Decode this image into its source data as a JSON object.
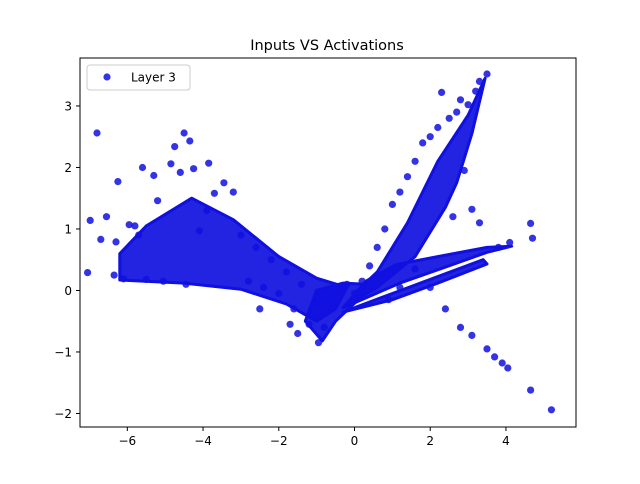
{
  "chart_data": {
    "type": "scatter",
    "title": "Inputs VS Activations",
    "xlabel": "",
    "ylabel": "",
    "xlim": [
      -7.25,
      5.85
    ],
    "ylim": [
      -2.22,
      3.78
    ],
    "xticks": [
      -6,
      -4,
      -2,
      0,
      2,
      4
    ],
    "yticks": [
      -2,
      -1,
      0,
      1,
      2,
      3
    ],
    "xtick_labels": [
      "−6",
      "−4",
      "−2",
      "0",
      "2",
      "4"
    ],
    "ytick_labels": [
      "−2",
      "−1",
      "0",
      "1",
      "2",
      "3"
    ],
    "legend_position": "top-left",
    "grid": false,
    "series": [
      {
        "name": "Layer 3",
        "color": "#1010e0",
        "points": [
          [
            -7.05,
            0.29
          ],
          [
            -6.98,
            1.14
          ],
          [
            -6.8,
            2.56
          ],
          [
            -6.7,
            0.83
          ],
          [
            -6.55,
            1.2
          ],
          [
            -6.35,
            0.25
          ],
          [
            -6.3,
            0.79
          ],
          [
            -6.25,
            1.77
          ],
          [
            -6.1,
            0.19
          ],
          [
            -5.95,
            1.07
          ],
          [
            -5.8,
            1.05
          ],
          [
            -5.6,
            2.0
          ],
          [
            -5.5,
            0.18
          ],
          [
            -5.3,
            1.87
          ],
          [
            -5.2,
            1.46
          ],
          [
            -5.05,
            0.15
          ],
          [
            -4.85,
            2.06
          ],
          [
            -4.75,
            2.34
          ],
          [
            -4.6,
            1.92
          ],
          [
            -4.5,
            2.56
          ],
          [
            -4.45,
            0.1
          ],
          [
            -4.35,
            2.43
          ],
          [
            -4.25,
            1.98
          ],
          [
            -4.1,
            0.97
          ],
          [
            -3.85,
            2.07
          ],
          [
            -3.7,
            1.58
          ],
          [
            -3.45,
            1.75
          ],
          [
            -3.2,
            1.6
          ],
          [
            -3.0,
            0.9
          ],
          [
            -2.8,
            0.15
          ],
          [
            -2.6,
            0.7
          ],
          [
            -2.4,
            0.05
          ],
          [
            -2.2,
            0.5
          ],
          [
            -2.0,
            -0.05
          ],
          [
            -1.8,
            0.3
          ],
          [
            -1.6,
            -0.3
          ],
          [
            -1.4,
            0.1
          ],
          [
            -1.2,
            -0.55
          ],
          [
            -1.0,
            -0.2
          ],
          [
            -0.95,
            -0.85
          ],
          [
            -0.8,
            -0.6
          ],
          [
            -0.6,
            -0.3
          ],
          [
            -0.4,
            0.0
          ],
          [
            -0.2,
            0.1
          ],
          [
            0.0,
            -0.05
          ],
          [
            0.2,
            0.15
          ],
          [
            0.4,
            0.4
          ],
          [
            0.6,
            0.7
          ],
          [
            0.8,
            1.0
          ],
          [
            1.0,
            1.4
          ],
          [
            1.2,
            1.6
          ],
          [
            1.4,
            1.85
          ],
          [
            1.6,
            2.1
          ],
          [
            1.8,
            2.4
          ],
          [
            2.0,
            2.5
          ],
          [
            2.2,
            2.65
          ],
          [
            2.3,
            3.22
          ],
          [
            2.5,
            2.8
          ],
          [
            2.7,
            2.9
          ],
          [
            2.8,
            3.1
          ],
          [
            3.0,
            3.02
          ],
          [
            3.2,
            3.24
          ],
          [
            3.3,
            3.4
          ],
          [
            3.5,
            3.52
          ],
          [
            2.9,
            1.95
          ],
          [
            3.1,
            1.32
          ],
          [
            3.3,
            1.1
          ],
          [
            2.6,
            1.2
          ],
          [
            4.65,
            1.09
          ],
          [
            4.7,
            0.85
          ],
          [
            4.1,
            0.78
          ],
          [
            3.8,
            0.7
          ],
          [
            1.6,
            0.35
          ],
          [
            2.0,
            0.05
          ],
          [
            2.4,
            -0.3
          ],
          [
            2.8,
            -0.6
          ],
          [
            3.1,
            -0.73
          ],
          [
            3.5,
            -0.95
          ],
          [
            3.7,
            -1.08
          ],
          [
            3.9,
            -1.18
          ],
          [
            4.05,
            -1.26
          ],
          [
            4.65,
            -1.62
          ],
          [
            5.2,
            -1.94
          ],
          [
            -2.5,
            -0.3
          ],
          [
            -1.7,
            -0.55
          ],
          [
            -1.5,
            -0.7
          ],
          [
            1.2,
            0.05
          ],
          [
            0.9,
            -0.15
          ],
          [
            -3.9,
            1.3
          ],
          [
            -5.7,
            0.9
          ]
        ]
      }
    ]
  }
}
